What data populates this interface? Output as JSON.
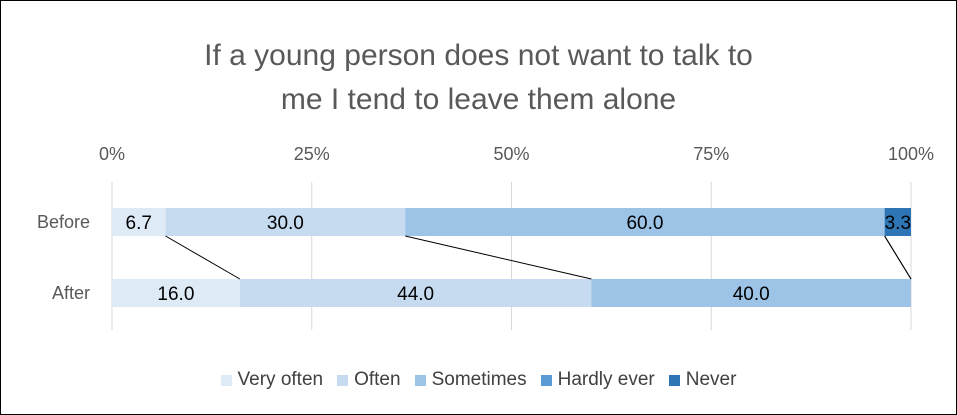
{
  "chart_data": {
    "type": "bar",
    "orientation": "horizontal",
    "stacked": "percent",
    "title": "If a young person does not want to talk to me I tend to leave them alone",
    "categories": [
      "Before",
      "After"
    ],
    "xlim": [
      0,
      100
    ],
    "x_ticks": [
      "0%",
      "25%",
      "50%",
      "75%",
      "100%"
    ],
    "x_axis_position": "top",
    "grid": "vertical",
    "series_lines": true,
    "legend_position": "bottom",
    "series": [
      {
        "name": "Very often",
        "color": "#deebf7",
        "values": [
          6.7,
          16.0
        ]
      },
      {
        "name": "Often",
        "color": "#c6dbef",
        "values": [
          30.0,
          44.0
        ]
      },
      {
        "name": "Sometimes",
        "color": "#9dc3e6",
        "values": [
          60.0,
          40.0
        ]
      },
      {
        "name": "Hardly ever",
        "color": "#5b9bd5",
        "values": [
          0.0,
          0.0
        ]
      },
      {
        "name": "Never",
        "color": "#2e75b6",
        "values": [
          3.3,
          0.0
        ]
      }
    ],
    "data_labels": [
      [
        "6.7",
        "16.0"
      ],
      [
        "30.0",
        "44.0"
      ],
      [
        "60.0",
        "40.0"
      ],
      [
        "",
        ""
      ],
      [
        "3.3",
        ""
      ]
    ]
  }
}
